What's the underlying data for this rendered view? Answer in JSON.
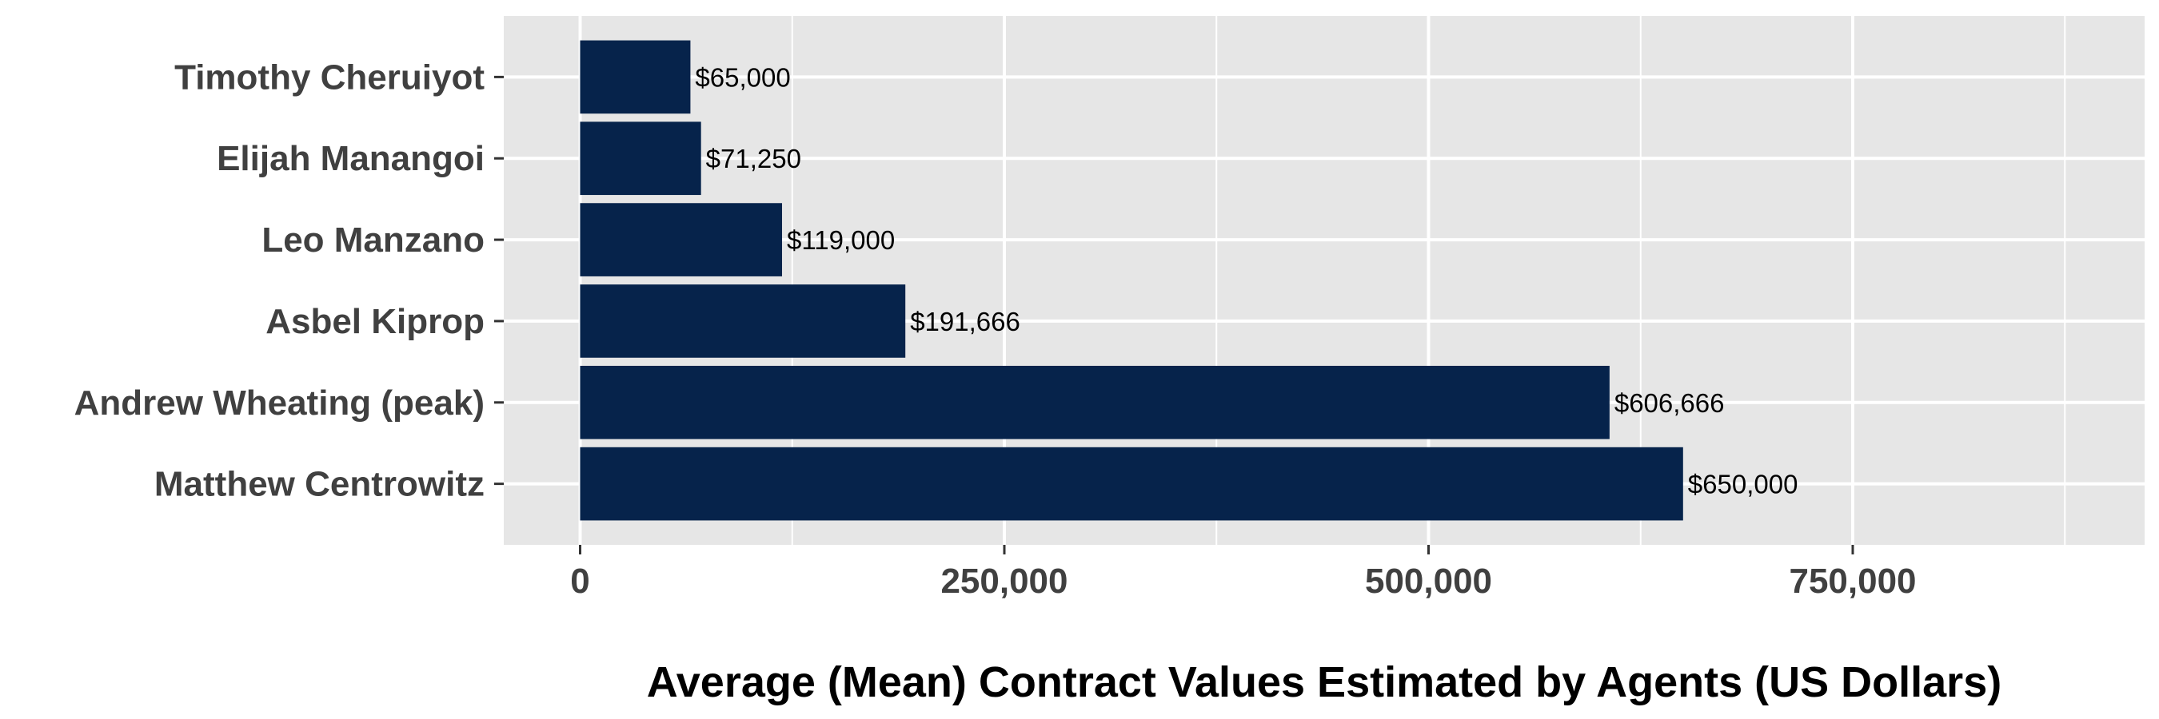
{
  "chart_data": {
    "type": "bar",
    "orientation": "horizontal",
    "categories": [
      "Matthew Centrowitz",
      "Andrew Wheating (peak)",
      "Asbel Kiprop",
      "Leo Manzano",
      "Elijah Manangoi",
      "Timothy Cheruiyot"
    ],
    "values": [
      650000,
      606666,
      191666,
      119000,
      71250,
      65000
    ],
    "data_labels": [
      "$650,000",
      "$606,666",
      "$191,666",
      "$119,000",
      "$71,250",
      "$65,000"
    ],
    "xlabel": "Average (Mean) Contract Values Estimated by Agents (US Dollars)",
    "xlim": [
      -45000,
      922000
    ],
    "x_ticks": [
      0,
      250000,
      500000,
      750000
    ],
    "x_tick_labels": [
      "0",
      "250,000",
      "500,000",
      "750,000"
    ],
    "x_minor_ticks": [
      125000,
      375000,
      625000,
      875000
    ],
    "grid": true,
    "legend": "none",
    "colors": {
      "bar": "#06234B",
      "panel": "#E6E6E6",
      "grid": "#FFFFFF"
    }
  }
}
